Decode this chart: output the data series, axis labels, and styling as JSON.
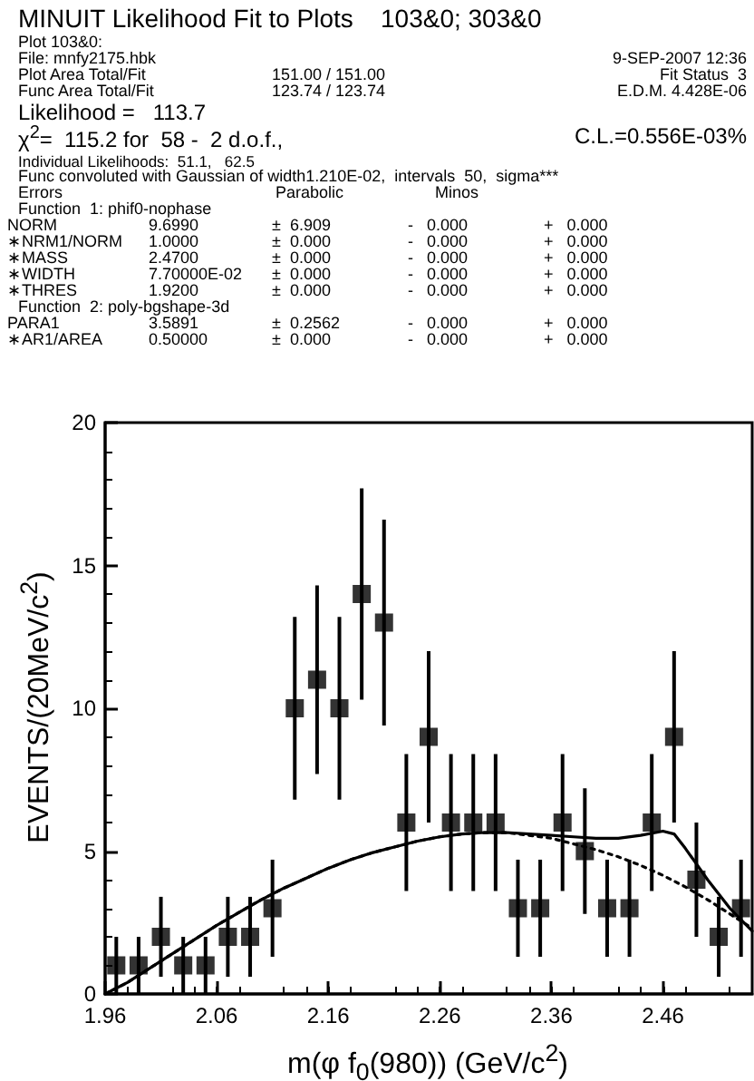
{
  "chart_data": {
    "type": "scatter",
    "annotations": [
      "MINUIT Likelihood Fit to Plots\t103&0; 303&0",
      "Plot 103&0:",
      "File: mnfy2175.hbk\t9-SEP-2007 12:36",
      "Plot Area Total/Fit\t151.00 / 151.00\tFit Status  3",
      "Func Area Total/Fit\t123.74 / 123.74\tE.D.M. 4.428E-06",
      "Likelihood =   113.7",
      "χ$^{2}$=  115.2 for  58 -  2 d.o.f.,\tC.L.=0.556E-03%",
      "Individual Likelihoods:  51.1,   62.5",
      "Func convoluted with Gaussian of width1.210E-02,  intervals  50,  sigma***",
      "Errors\tParabolic\tMinos",
      "Function  1: phif0-nophase",
      "NORM\t9.6990\t±  6.909\t-   0.000\t+   0.000",
      "∗NRM1/NORM\t1.0000\t±  0.000\t-   0.000\t+   0.000",
      "∗MASS\t2.4700\t±  0.000\t-   0.000\t+   0.000",
      "∗WIDTH\t7.70000E-02\t±  0.000\t-   0.000\t+   0.000",
      "∗THRES\t1.9200\t±  0.000\t-   0.000\t+   0.000",
      "Function  2: poly-bgshape-3d",
      "PARA1\t3.5891\t±  0.2562\t-   0.000\t+   0.000",
      "∗AR1/AREA\t0.50000\t±  0.000\t-   0.000\t+   0.000"
    ],
    "xlabel": "m(φ f$_{0}$(980)) (GeV/c$^{2}$)",
    "ylabel": "EVENTS/(20MeV/c$^{2}$)",
    "xlim": [
      1.96,
      2.54
    ],
    "xticks": [
      1.96,
      2.06,
      2.16,
      2.26,
      2.36,
      2.46
    ],
    "ylim": [
      0,
      20
    ],
    "yticks": [
      0,
      5,
      10,
      15,
      20
    ],
    "grid": false,
    "series": [
      {
        "color": "#000000",
        "marker": "square",
        "x": [
          1.97,
          1.99,
          2.01,
          2.03,
          2.05,
          2.07,
          2.09,
          2.11,
          2.13,
          2.15,
          2.17,
          2.19,
          2.21,
          2.23,
          2.25,
          2.27,
          2.29,
          2.31,
          2.33,
          2.35,
          2.37,
          2.39,
          2.41,
          2.43,
          2.45,
          2.47,
          2.49,
          2.51,
          2.53
        ],
        "values": [
          1,
          1,
          2,
          1,
          1,
          2,
          2,
          3,
          10,
          11,
          10,
          14,
          13,
          6,
          9,
          6,
          6,
          6,
          3,
          3,
          6,
          5,
          3,
          3,
          6,
          9,
          4,
          2,
          3
        ],
        "errors": [
          1,
          1,
          1.4,
          1,
          1,
          1.4,
          1.4,
          1.7,
          3.2,
          3.3,
          3.2,
          3.7,
          3.6,
          2.4,
          3,
          2.4,
          2.4,
          2.4,
          1.7,
          1.7,
          2.4,
          2.2,
          1.7,
          1.7,
          2.4,
          3,
          2,
          1.4,
          1.7
        ]
      },
      {
        "type": "line",
        "color": "#000000",
        "marker": "none",
        "line_style": "solid",
        "x": [
          1.96,
          1.98,
          2.0,
          2.02,
          2.04,
          2.06,
          2.08,
          2.1,
          2.12,
          2.14,
          2.16,
          2.18,
          2.2,
          2.22,
          2.24,
          2.26,
          2.28,
          2.3,
          2.32,
          2.34,
          2.36,
          2.38,
          2.4,
          2.42,
          2.44,
          2.46,
          2.47,
          2.48,
          2.5,
          2.52,
          2.54
        ],
        "values": [
          0,
          0.4,
          0.9,
          1.4,
          1.9,
          2.4,
          2.85,
          3.3,
          3.7,
          4.05,
          4.4,
          4.7,
          4.95,
          5.15,
          5.35,
          5.5,
          5.6,
          5.65,
          5.65,
          5.6,
          5.55,
          5.5,
          5.45,
          5.45,
          5.55,
          5.7,
          5.6,
          5.1,
          4.0,
          3.0,
          2.2
        ]
      },
      {
        "type": "line",
        "color": "#000000",
        "marker": "none",
        "line_style": "dotted",
        "x": [
          1.96,
          1.98,
          2.0,
          2.02,
          2.04,
          2.06,
          2.08,
          2.1,
          2.12,
          2.14,
          2.16,
          2.18,
          2.2,
          2.22,
          2.24,
          2.26,
          2.28,
          2.3,
          2.32,
          2.34,
          2.36,
          2.38,
          2.4,
          2.42,
          2.44,
          2.46,
          2.48,
          2.5,
          2.52,
          2.54
        ],
        "values": [
          0,
          0.4,
          0.9,
          1.4,
          1.9,
          2.4,
          2.85,
          3.3,
          3.7,
          4.05,
          4.4,
          4.7,
          4.95,
          5.15,
          5.35,
          5.5,
          5.6,
          5.65,
          5.65,
          5.55,
          5.45,
          5.25,
          5.05,
          4.8,
          4.5,
          4.15,
          3.75,
          3.3,
          2.8,
          2.3
        ]
      }
    ]
  }
}
